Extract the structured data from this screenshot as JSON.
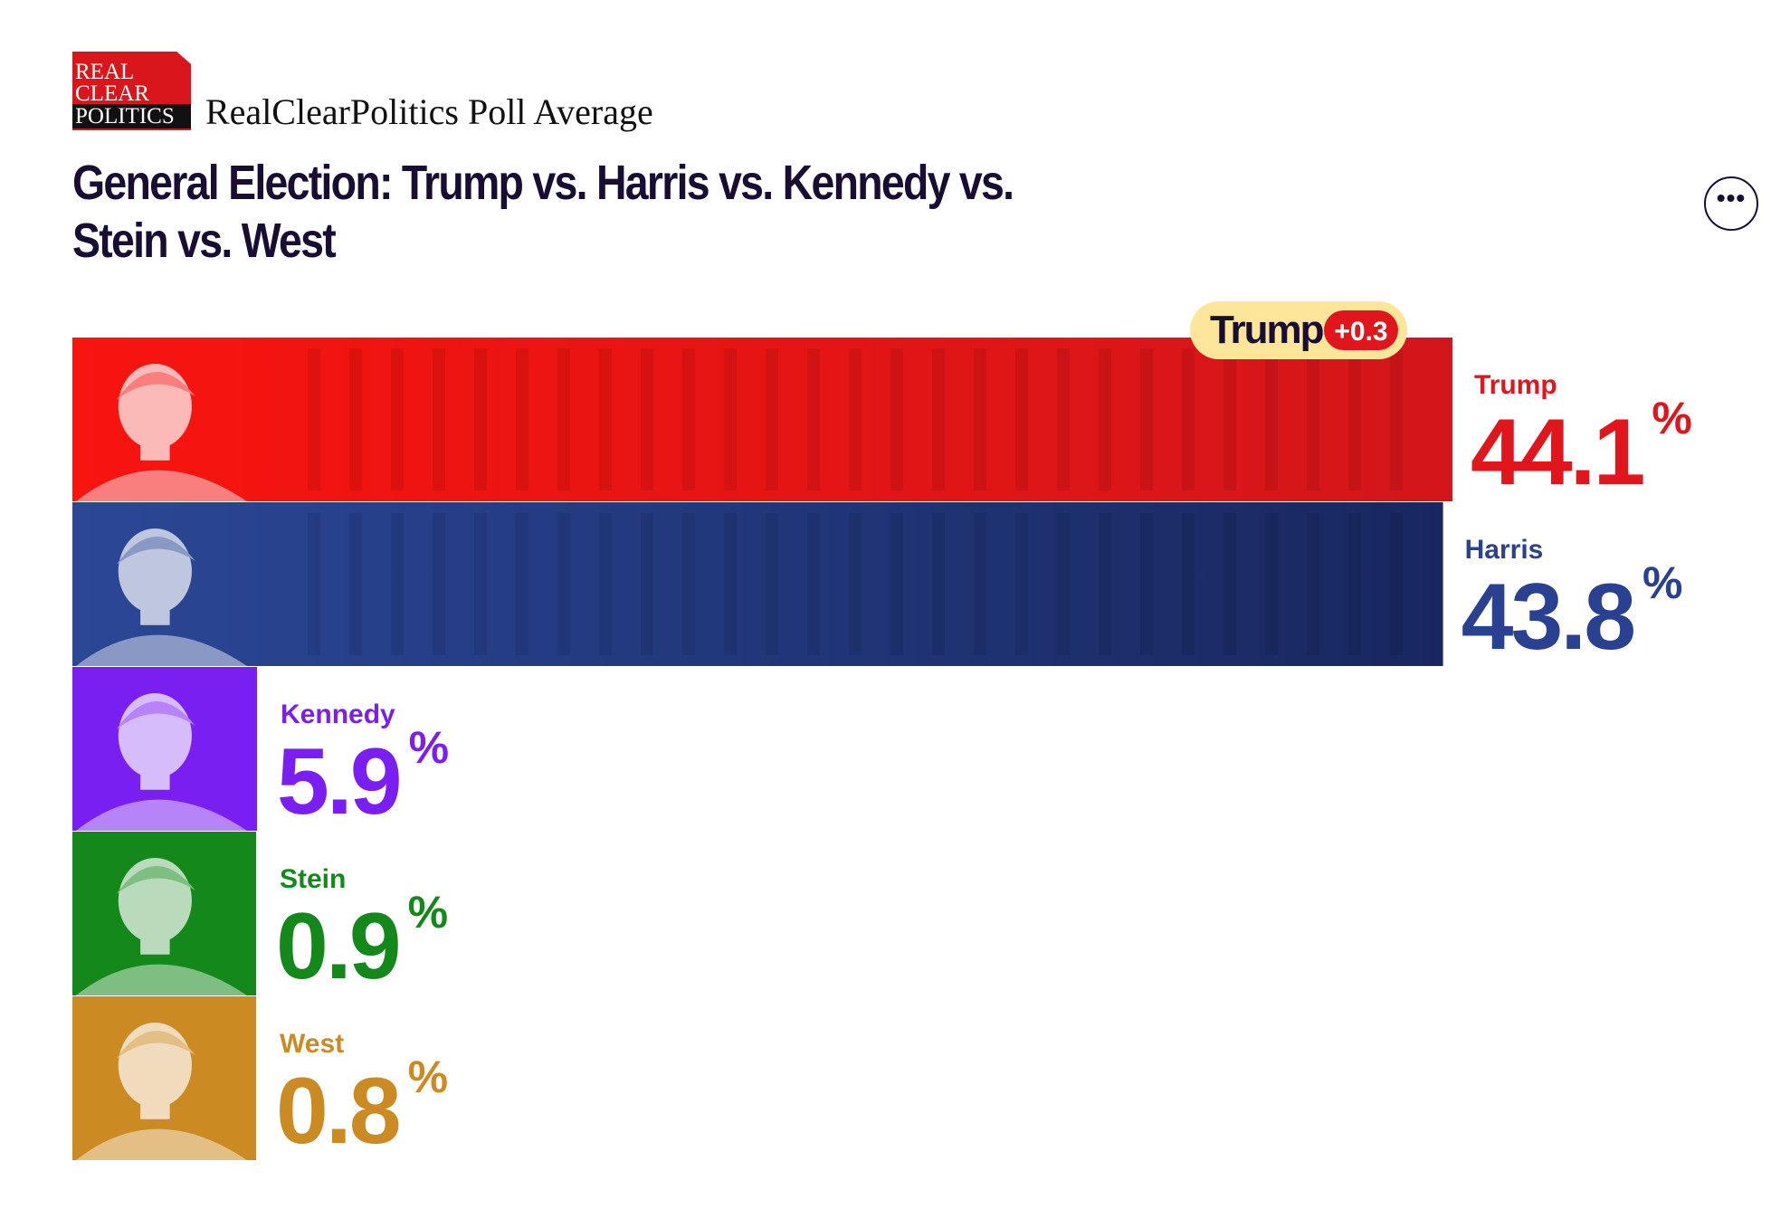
{
  "header": {
    "logo_lines": [
      "REAL",
      "CLEAR",
      "POLITICS"
    ],
    "brand": "RealClearPolitics Poll Average",
    "more_icon": "ellipsis-icon"
  },
  "chart_data": {
    "type": "bar",
    "orientation": "horizontal",
    "title": "General Election: Trump vs. Harris vs. Kennedy vs. Stein vs. West",
    "categories": [
      "Trump",
      "Harris",
      "Kennedy",
      "Stein",
      "West"
    ],
    "values": [
      44.1,
      43.8,
      5.9,
      0.9,
      0.8
    ],
    "value_labels": [
      "44.1",
      "43.8",
      "5.9",
      "0.9",
      "0.8"
    ],
    "unit": "%",
    "colors": [
      "#e0161c",
      "#27408f",
      "#7a1ff2",
      "#14881b",
      "#cc8a22"
    ],
    "label_colors": [
      "#e0161c",
      "#2a4191",
      "#7a1ff2",
      "#14881b",
      "#cc8a22"
    ],
    "leader": {
      "name": "Trump",
      "margin": "+0.3"
    }
  }
}
